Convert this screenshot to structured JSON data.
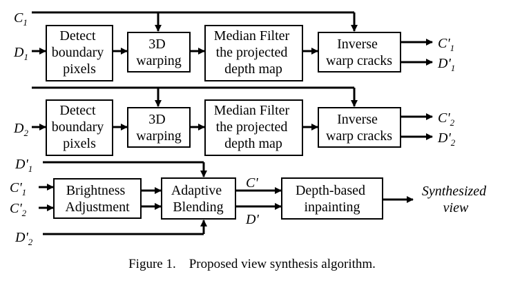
{
  "blocks": {
    "r1_detect": [
      "Detect",
      "boundary",
      "pixels"
    ],
    "r1_warp": [
      "3D",
      "warping"
    ],
    "r1_median": [
      "Median Filter",
      "the projected",
      "depth map"
    ],
    "r1_inverse": [
      "Inverse",
      "warp cracks"
    ],
    "r2_detect": [
      "Detect",
      "boundary",
      "pixels"
    ],
    "r2_warp": [
      "3D",
      "warping"
    ],
    "r2_median": [
      "Median Filter",
      "the projected",
      "depth map"
    ],
    "r2_inverse": [
      "Inverse",
      "warp cracks"
    ],
    "brightness": [
      "Brightness",
      "Adjustment"
    ],
    "adaptive": [
      "Adaptive",
      "Blending"
    ],
    "depth": [
      "Depth-based",
      "inpainting"
    ]
  },
  "signals": {
    "c1_in": {
      "main": "C",
      "sub": "1"
    },
    "d1_in": {
      "main": "D",
      "sub": "1"
    },
    "c1_out": {
      "main": "C'",
      "sub": "1"
    },
    "d1_out": {
      "main": "D'",
      "sub": "1"
    },
    "d2_in": {
      "main": "D",
      "sub": "2"
    },
    "c2_out": {
      "main": "C'",
      "sub": "2"
    },
    "d2_out": {
      "main": "D'",
      "sub": "2"
    },
    "d1p_in": {
      "main": "D'",
      "sub": "1"
    },
    "c1p_in": {
      "main": "C'",
      "sub": "1"
    },
    "c2p_in": {
      "main": "C'",
      "sub": "2"
    },
    "d2p_in": {
      "main": "D'",
      "sub": "2"
    },
    "c_mid": {
      "main": "C'",
      "sub": ""
    },
    "d_mid": {
      "main": "D'",
      "sub": ""
    }
  },
  "output": [
    "Synthesized",
    "view"
  ],
  "caption": "Figure 1.    Proposed view synthesis algorithm."
}
